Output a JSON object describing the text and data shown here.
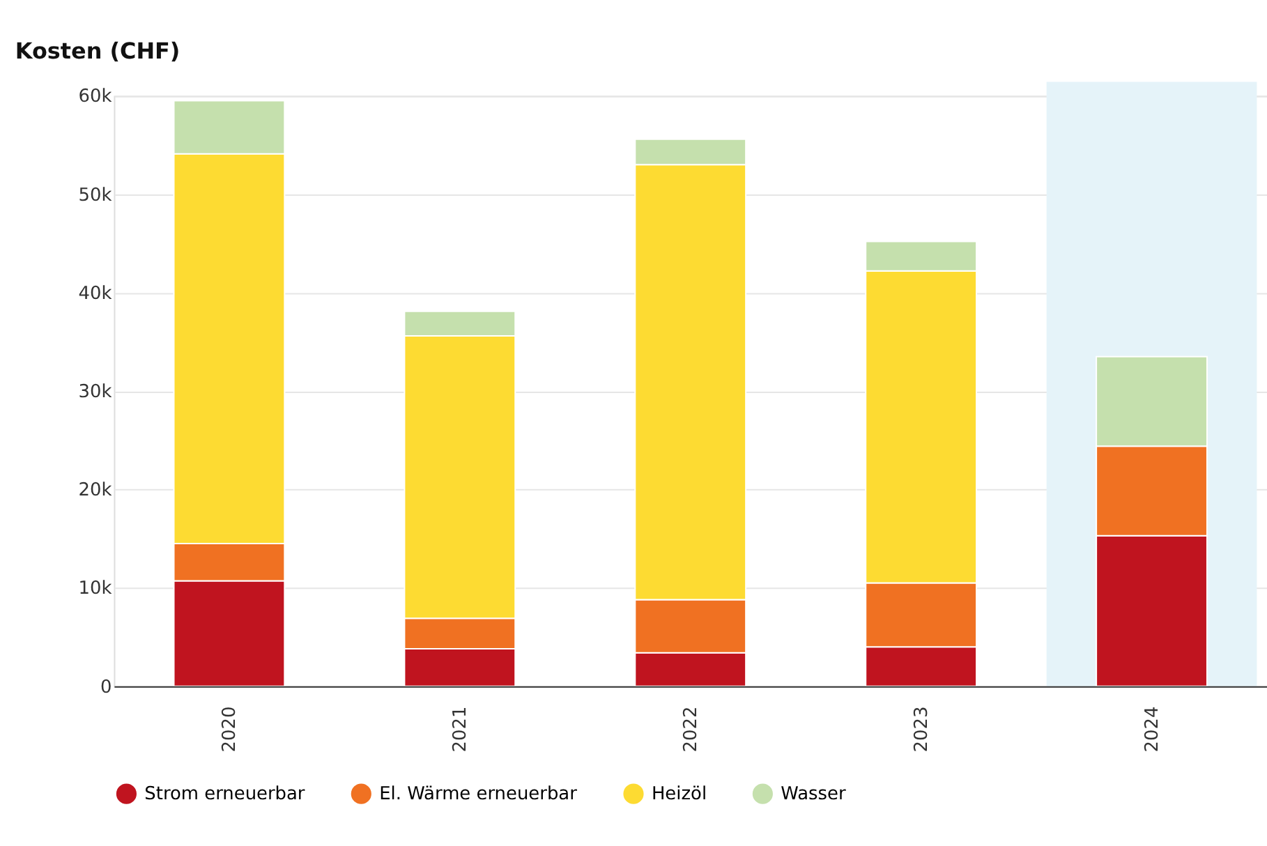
{
  "chart_data": {
    "type": "bar",
    "title": "Kosten (CHF)",
    "stacked": true,
    "categories": [
      "2020",
      "2021",
      "2022",
      "2023",
      "2024"
    ],
    "series": [
      {
        "name": "Strom erneuerbar",
        "color": "#c0141f",
        "values": [
          10700,
          3800,
          3400,
          4000,
          15300
        ]
      },
      {
        "name": "El. Wärme erneuerbar",
        "color": "#f07122",
        "values": [
          3800,
          3100,
          5400,
          6500,
          9100
        ]
      },
      {
        "name": "Heizöl",
        "color": "#fddb32",
        "values": [
          39600,
          28700,
          44200,
          31700,
          null
        ]
      },
      {
        "name": "Wasser",
        "color": "#c5e0ad",
        "values": [
          5400,
          2500,
          2600,
          3000,
          9100
        ]
      }
    ],
    "ylim": [
      0,
      60000
    ],
    "yticks": [
      0,
      {
        "value": 10000,
        "label": "10k"
      },
      {
        "value": 20000,
        "label": "20k"
      },
      {
        "value": 30000,
        "label": "30k"
      },
      {
        "value": 40000,
        "label": "40k"
      },
      {
        "value": 50000,
        "label": "50k"
      },
      {
        "value": 60000,
        "label": "60k"
      }
    ],
    "bands": [
      {
        "axis": "x",
        "from": "2024",
        "to": "2024",
        "label": null,
        "color": "#e5f3f9"
      }
    ],
    "grid": "y",
    "legend": "bottom"
  }
}
